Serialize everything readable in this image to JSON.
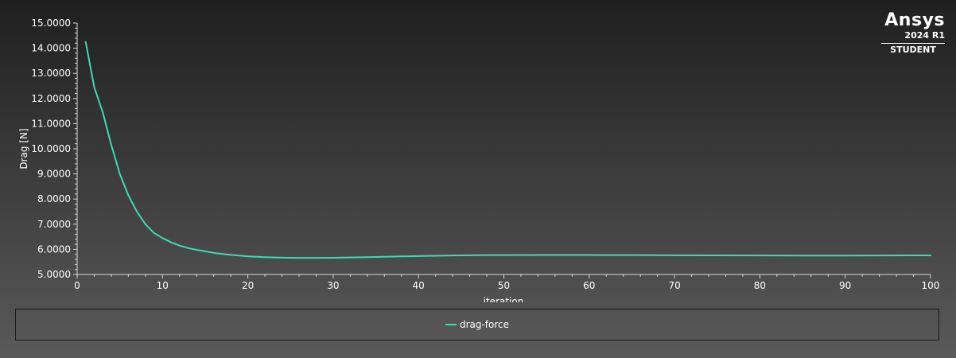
{
  "chart_data": {
    "type": "line",
    "title": "",
    "xlabel": "iteration",
    "ylabel": "Drag [N]",
    "xlim": [
      0,
      100
    ],
    "ylim": [
      5.0,
      15.0
    ],
    "x_ticks": [
      "0",
      "10",
      "20",
      "30",
      "40",
      "50",
      "60",
      "70",
      "80",
      "90",
      "100"
    ],
    "y_ticks": [
      "5.0000",
      "6.0000",
      "7.0000",
      "8.0000",
      "9.0000",
      "10.0000",
      "11.0000",
      "12.0000",
      "13.0000",
      "14.0000",
      "15.0000"
    ],
    "grid": false,
    "legend_position": "bottom",
    "series": [
      {
        "name": "drag-force",
        "color": "#40d9b5",
        "x": [
          1,
          2,
          3,
          4,
          5,
          6,
          7,
          8,
          9,
          10,
          11,
          12,
          13,
          14,
          15,
          16,
          17,
          18,
          19,
          20,
          22,
          24,
          26,
          28,
          30,
          32,
          34,
          36,
          38,
          40,
          42,
          44,
          46,
          48,
          50,
          55,
          60,
          65,
          70,
          75,
          80,
          85,
          90,
          95,
          100
        ],
        "y": [
          14.25,
          12.45,
          11.45,
          10.15,
          9.0,
          8.15,
          7.5,
          7.0,
          6.65,
          6.45,
          6.28,
          6.15,
          6.05,
          5.98,
          5.92,
          5.86,
          5.82,
          5.78,
          5.75,
          5.72,
          5.69,
          5.67,
          5.66,
          5.66,
          5.665,
          5.675,
          5.69,
          5.705,
          5.72,
          5.73,
          5.745,
          5.755,
          5.765,
          5.77,
          5.77,
          5.775,
          5.775,
          5.77,
          5.765,
          5.76,
          5.755,
          5.75,
          5.75,
          5.755,
          5.76
        ]
      }
    ]
  },
  "logo": {
    "brand": "Ansys",
    "version": "2024 R1",
    "edition": "STUDENT"
  }
}
